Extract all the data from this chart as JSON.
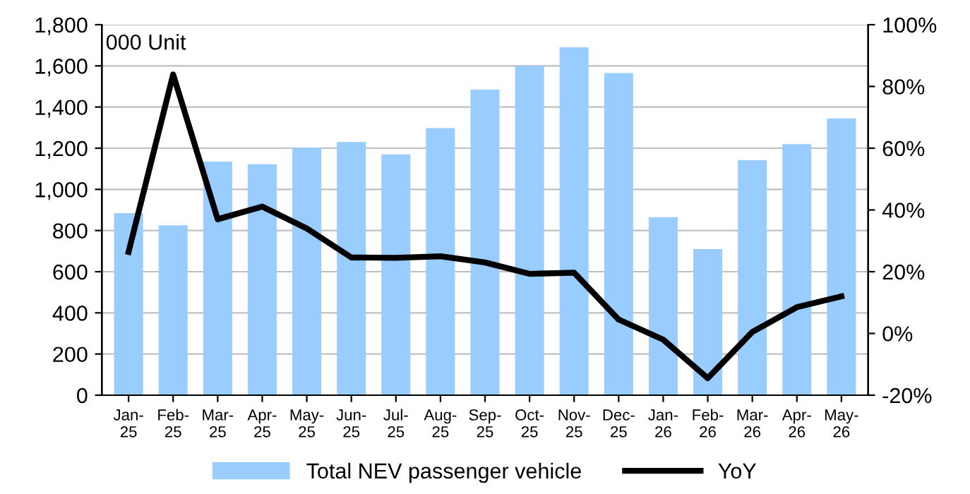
{
  "chart_data": {
    "type": "bar",
    "annotations": [
      "000 Unit"
    ],
    "categories": [
      "Jan-\n25",
      "Feb-\n25",
      "Mar-\n25",
      "Apr-\n25",
      "May-\n25",
      "Jun-\n25",
      "Jul-\n25",
      "Aug-\n25",
      "Sep-\n25",
      "Oct-\n25",
      "Nov-\n25",
      "Dec-\n25",
      "Jan-\n26",
      "Feb-\n26",
      "Mar-\n26",
      "Apr-\n26",
      "May-\n26"
    ],
    "series": [
      {
        "name": "Total NEV passenger vehicle",
        "color": "#99ccff",
        "values": [
          885,
          825,
          1135,
          1122,
          1203,
          1230,
          1170,
          1298,
          1485,
          1600,
          1690,
          1565,
          865,
          710,
          1142,
          1220,
          1345
        ]
      },
      {
        "name": "YoY",
        "type": "line",
        "axis": "y2",
        "color": "#000000",
        "values": [
          26.4,
          83.9,
          37,
          41.1,
          34,
          24.6,
          24.5,
          25,
          23,
          19.3,
          19.7,
          4.5,
          -2,
          -14.5,
          0.5,
          8.5,
          12
        ]
      }
    ],
    "ylim": [
      0,
      1800
    ],
    "yticks": [
      {
        "value": 0,
        "label": "0"
      },
      {
        "value": 200,
        "label": "200"
      },
      {
        "value": 400,
        "label": "400"
      },
      {
        "value": 600,
        "label": "600"
      },
      {
        "value": 800,
        "label": "800"
      },
      {
        "value": 1000,
        "label": "1,000"
      },
      {
        "value": 1200,
        "label": "1,200"
      },
      {
        "value": 1400,
        "label": "1,400"
      },
      {
        "value": 1600,
        "label": "1,600"
      },
      {
        "value": 1800,
        "label": "1,800"
      }
    ],
    "y2lim": [
      -20,
      100
    ],
    "y2ticks": [
      {
        "value": -20,
        "label": "-20%"
      },
      {
        "value": 0,
        "label": "0%"
      },
      {
        "value": 20,
        "label": "20%"
      },
      {
        "value": 40,
        "label": "40%"
      },
      {
        "value": 60,
        "label": "60%"
      },
      {
        "value": 80,
        "label": "80%"
      },
      {
        "value": 100,
        "label": "100%"
      }
    ],
    "grid": "y",
    "legend": "bottom",
    "marker": "none",
    "line_style": "solid"
  }
}
